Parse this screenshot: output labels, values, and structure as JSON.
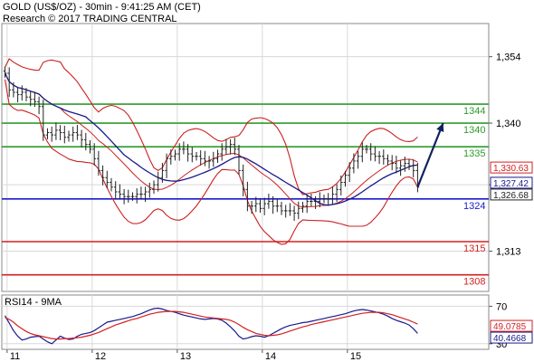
{
  "header": {
    "title": "GOLD (US$/OZ) - 30min - 9:41:25 AM (CET)",
    "subtitle": "Research © 2017 TRADING CENTRAL"
  },
  "chart_data": [
    {
      "type": "candlestick",
      "name": "price",
      "ylim": [
        1304.5,
        1361
      ],
      "yticks": [
        {
          "value": 1354,
          "label": "1,354"
        },
        {
          "value": 1340,
          "label": "1,340"
        },
        {
          "value": 1327,
          "label": "1,327"
        },
        {
          "value": 1313,
          "label": "1,313"
        }
      ],
      "x_labels": [
        "11",
        "12",
        "13",
        "14",
        "15"
      ],
      "x_label_positions": [
        0.5,
        20.5,
        40.5,
        60.5,
        80.5
      ],
      "n_bars": 98,
      "closes": [
        1350.5,
        1347.0,
        1346.5,
        1346.0,
        1346.5,
        1345.5,
        1345.0,
        1344.5,
        1343.5,
        1337.5,
        1338.0,
        1337.5,
        1338.5,
        1338.0,
        1337.0,
        1337.5,
        1338.0,
        1337.5,
        1336.5,
        1335.5,
        1334.5,
        1332.5,
        1330.0,
        1328.5,
        1327.5,
        1326.5,
        1325.5,
        1325.0,
        1324.5,
        1324.5,
        1324.5,
        1325.0,
        1325.0,
        1325.5,
        1326.0,
        1327.0,
        1328.5,
        1330.0,
        1332.5,
        1333.0,
        1333.5,
        1334.5,
        1334.5,
        1333.5,
        1333.0,
        1333.0,
        1332.5,
        1332.0,
        1332.0,
        1332.5,
        1333.5,
        1334.5,
        1335.0,
        1335.5,
        1334.5,
        1330.0,
        1326.0,
        1322.5,
        1322.5,
        1323.0,
        1322.0,
        1323.0,
        1323.5,
        1322.5,
        1322.5,
        1321.5,
        1321.5,
        1321.5,
        1321.0,
        1322.0,
        1322.5,
        1323.5,
        1323.5,
        1323.5,
        1324.0,
        1324.0,
        1324.0,
        1325.0,
        1326.0,
        1327.5,
        1329.0,
        1330.5,
        1332.0,
        1333.0,
        1334.5,
        1334.5,
        1333.5,
        1333.0,
        1333.0,
        1332.5,
        1332.0,
        1331.5,
        1330.5,
        1331.0,
        1331.5,
        1331.0,
        1330.0,
        1326.5
      ],
      "lines": [
        {
          "price": 1344,
          "label": "1344",
          "color": "#2e9b2e"
        },
        {
          "price": 1340,
          "label": "1340",
          "color": "#2e9b2e"
        },
        {
          "price": 1335,
          "label": "1335",
          "color": "#2e9b2e"
        },
        {
          "price": 1324,
          "label": "1324",
          "color": "#1a1acc"
        },
        {
          "price": 1315,
          "label": "1315",
          "color": "#d42020"
        },
        {
          "price": 1308,
          "label": "1308",
          "color": "#d42020"
        }
      ],
      "price_tags": [
        {
          "price": 1330.63,
          "label": "1,330.63",
          "color": "#d42020"
        },
        {
          "price": 1327.42,
          "label": "1,327.42",
          "color": "#1a1a8c"
        },
        {
          "price": 1326.68,
          "label": "1,326.68",
          "color": "#222222"
        }
      ],
      "projection_arrow": {
        "from_bar": 97,
        "from_price": 1326.5,
        "to_bar": 103,
        "to_price": 1340.0,
        "color": "#102060"
      },
      "colors": {
        "bars": "#222222",
        "bands": "#cc2020",
        "ma": "#1a1a8c",
        "grid": "#d8d8d8"
      }
    },
    {
      "type": "line",
      "name": "RSI14 - 9MA",
      "title": "RSI14 - 9MA",
      "ylim": [
        24,
        82
      ],
      "yticks": [
        {
          "value": 70,
          "label": "70"
        },
        {
          "value": 30,
          "label": "30"
        }
      ],
      "series": [
        {
          "name": "RSI14",
          "color": "#1a1a8c",
          "values": [
            60.0,
            52.0,
            44.0,
            38.0,
            34.0,
            35.0,
            37.0,
            37.5,
            38.0,
            35.0,
            32.0,
            30.0,
            34.0,
            38.0,
            36.0,
            34.5,
            35.0,
            38.0,
            40.0,
            41.0,
            42.0,
            44.0,
            47.0,
            50.0,
            53.0,
            54.0,
            55.0,
            56.0,
            57.0,
            58.0,
            59.0,
            60.5,
            62.0,
            64.0,
            66.0,
            67.5,
            68.0,
            67.0,
            65.5,
            64.5,
            63.5,
            62.0,
            60.5,
            59.5,
            58.5,
            57.5,
            56.5,
            56.0,
            56.5,
            57.0,
            56.5,
            55.0,
            52.0,
            48.0,
            43.5,
            38.0,
            35.0,
            36.0,
            37.5,
            38.5,
            38.0,
            37.0,
            38.5,
            41.0,
            43.5,
            46.0,
            48.0,
            49.5,
            50.5,
            51.5,
            52.5,
            53.0,
            54.0,
            55.0,
            56.0,
            57.0,
            58.0,
            59.0,
            60.0,
            61.0,
            62.0,
            63.5,
            65.0,
            66.0,
            66.5,
            66.0,
            65.0,
            64.0,
            63.0,
            61.5,
            59.5,
            57.0,
            55.0,
            53.5,
            52.0,
            50.0,
            46.0,
            41.0
          ]
        },
        {
          "name": "9MA",
          "color": "#d42020",
          "values": [
            58.0,
            56.0,
            53.0,
            49.0,
            46.0,
            43.0,
            41.0,
            39.5,
            38.5,
            37.5,
            36.5,
            35.5,
            35.0,
            35.0,
            35.5,
            35.5,
            36.0,
            36.5,
            37.0,
            38.0,
            39.0,
            40.5,
            42.0,
            44.0,
            46.0,
            48.0,
            50.0,
            51.5,
            53.0,
            54.5,
            56.0,
            57.0,
            58.5,
            60.0,
            61.5,
            62.5,
            63.5,
            64.0,
            64.5,
            64.5,
            64.5,
            64.0,
            63.5,
            62.5,
            61.5,
            60.5,
            59.5,
            58.5,
            58.0,
            57.5,
            57.0,
            56.5,
            56.0,
            55.0,
            53.0,
            50.5,
            47.5,
            45.0,
            43.0,
            41.0,
            40.0,
            39.0,
            38.5,
            39.0,
            39.5,
            40.5,
            42.0,
            43.5,
            45.0,
            46.5,
            48.0,
            49.0,
            50.5,
            51.5,
            52.5,
            53.5,
            54.5,
            55.5,
            56.5,
            57.5,
            58.5,
            59.5,
            60.5,
            61.5,
            62.5,
            63.0,
            63.5,
            63.5,
            63.5,
            63.0,
            62.0,
            61.0,
            59.5,
            58.0,
            56.5,
            55.0,
            53.0,
            51.0
          ]
        }
      ],
      "value_tags": [
        {
          "value": 49.0785,
          "label": "49.0785",
          "color": "#d42020"
        },
        {
          "value": 40.4668,
          "label": "40.4668",
          "color": "#1a1a8c"
        }
      ]
    }
  ]
}
